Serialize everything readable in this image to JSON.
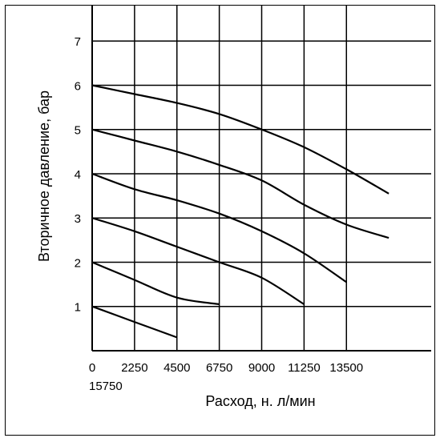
{
  "chart_data": {
    "type": "line",
    "xlabel": "Расход, н. л/мин",
    "ylabel": "Вторичное давление, бар",
    "xlim": [
      0,
      18000
    ],
    "ylim": [
      0,
      7.8
    ],
    "x_ticks": [
      0,
      2250,
      4500,
      6750,
      9000,
      11250,
      13500
    ],
    "x_tick_labels": [
      "0",
      "2250",
      "4500",
      "6750",
      "9000",
      "11250",
      "13500"
    ],
    "x_extra_tick_label": "15750",
    "y_ticks": [
      1,
      2,
      3,
      4,
      5,
      6,
      7
    ],
    "y_tick_labels": [
      "1",
      "2",
      "3",
      "4",
      "5",
      "6",
      "7"
    ],
    "grid": true,
    "series": [
      {
        "x": [
          0,
          2250,
          4500
        ],
        "y": [
          1.0,
          0.65,
          0.3
        ]
      },
      {
        "x": [
          0,
          2250,
          4500,
          6750
        ],
        "y": [
          2.0,
          1.6,
          1.2,
          1.05
        ]
      },
      {
        "x": [
          0,
          2250,
          4500,
          6750,
          9000,
          11250
        ],
        "y": [
          3.0,
          2.7,
          2.35,
          2.0,
          1.65,
          1.05
        ]
      },
      {
        "x": [
          0,
          2250,
          4500,
          6750,
          9000,
          11250,
          13500
        ],
        "y": [
          4.0,
          3.65,
          3.4,
          3.1,
          2.7,
          2.2,
          1.55
        ]
      },
      {
        "x": [
          0,
          2250,
          4500,
          6750,
          9000,
          11250,
          13500,
          15750
        ],
        "y": [
          5.0,
          4.75,
          4.5,
          4.2,
          3.85,
          3.3,
          2.85,
          2.55
        ]
      },
      {
        "x": [
          0,
          2250,
          4500,
          6750,
          9000,
          11250,
          13500,
          15750
        ],
        "y": [
          6.0,
          5.8,
          5.6,
          5.35,
          5.0,
          4.6,
          4.1,
          3.55
        ]
      }
    ]
  }
}
